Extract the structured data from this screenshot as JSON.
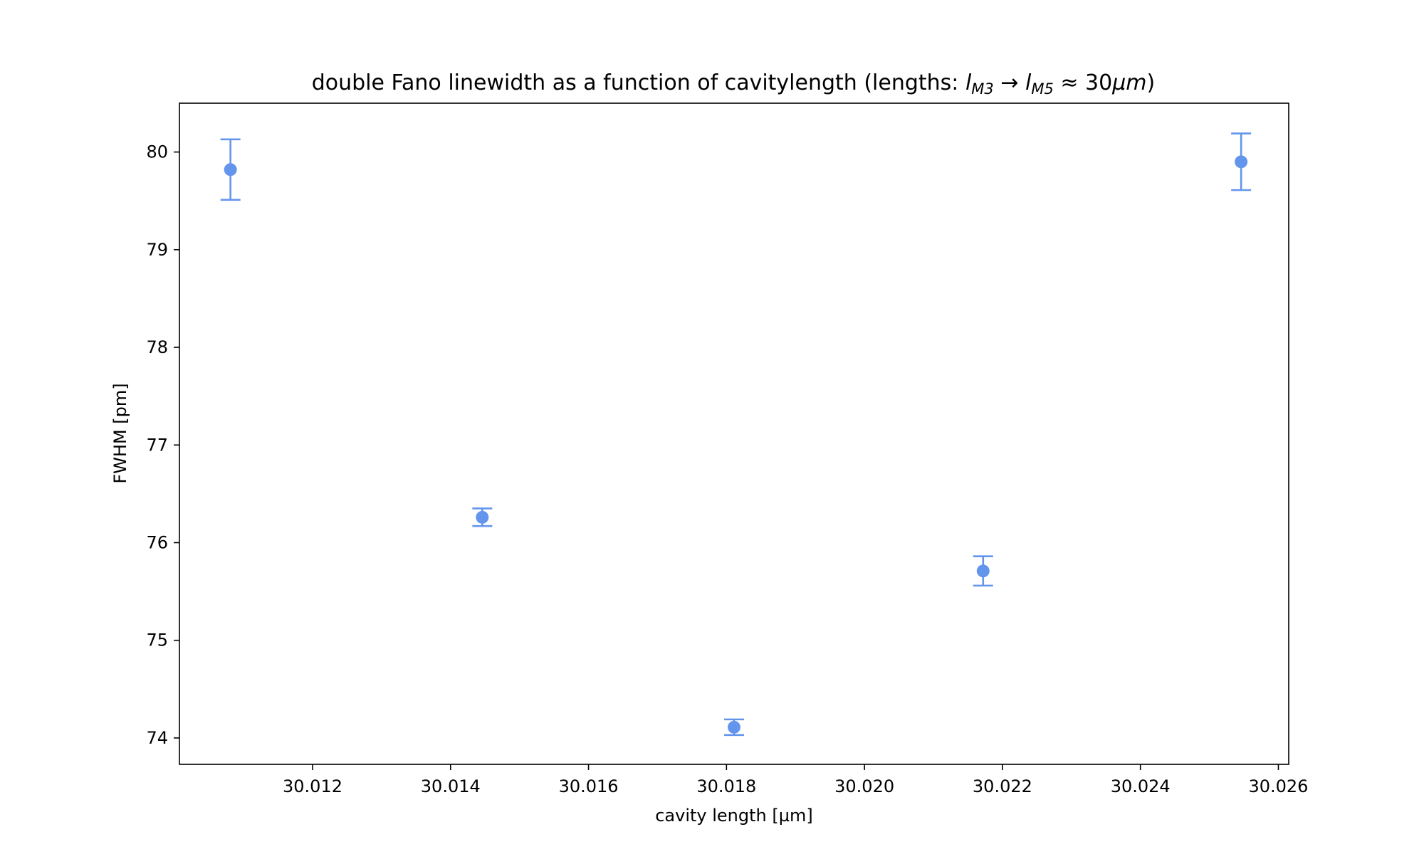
{
  "chart_data": {
    "type": "scatter",
    "title_parts": {
      "prefix": "double Fano linewidth as a function of cavitylength (lengths: ",
      "var1": "l",
      "sub1": "M3",
      "arrow": " → ",
      "var2": "l",
      "sub2": "M5",
      "approx": " ≈ 30",
      "mu": "μm",
      "suffix": ")"
    },
    "xlabel": "cavity length [µm]",
    "ylabel": "FWHM [pm]",
    "xlim": [
      30.01007,
      30.02615
    ],
    "ylim": [
      73.73,
      80.5
    ],
    "x_ticks": [
      {
        "value": 30.012,
        "label": "30.012"
      },
      {
        "value": 30.014,
        "label": "30.014"
      },
      {
        "value": 30.016,
        "label": "30.016"
      },
      {
        "value": 30.018,
        "label": "30.018"
      },
      {
        "value": 30.02,
        "label": "30.020"
      },
      {
        "value": 30.022,
        "label": "30.022"
      },
      {
        "value": 30.024,
        "label": "30.024"
      },
      {
        "value": 30.026,
        "label": "30.026"
      }
    ],
    "y_ticks": [
      {
        "value": 74,
        "label": "74"
      },
      {
        "value": 75,
        "label": "75"
      },
      {
        "value": 76,
        "label": "76"
      },
      {
        "value": 77,
        "label": "77"
      },
      {
        "value": 78,
        "label": "78"
      },
      {
        "value": 79,
        "label": "79"
      },
      {
        "value": 80,
        "label": "80"
      }
    ],
    "grid": false,
    "series": [
      {
        "color": "#6495ED",
        "points": [
          {
            "x": 30.01081,
            "y": 79.82,
            "err": 0.31
          },
          {
            "x": 30.01446,
            "y": 76.26,
            "err": 0.09
          },
          {
            "x": 30.01811,
            "y": 74.11,
            "err": 0.08
          },
          {
            "x": 30.02172,
            "y": 75.71,
            "err": 0.15
          },
          {
            "x": 30.02546,
            "y": 79.9,
            "err": 0.29
          }
        ]
      }
    ]
  }
}
